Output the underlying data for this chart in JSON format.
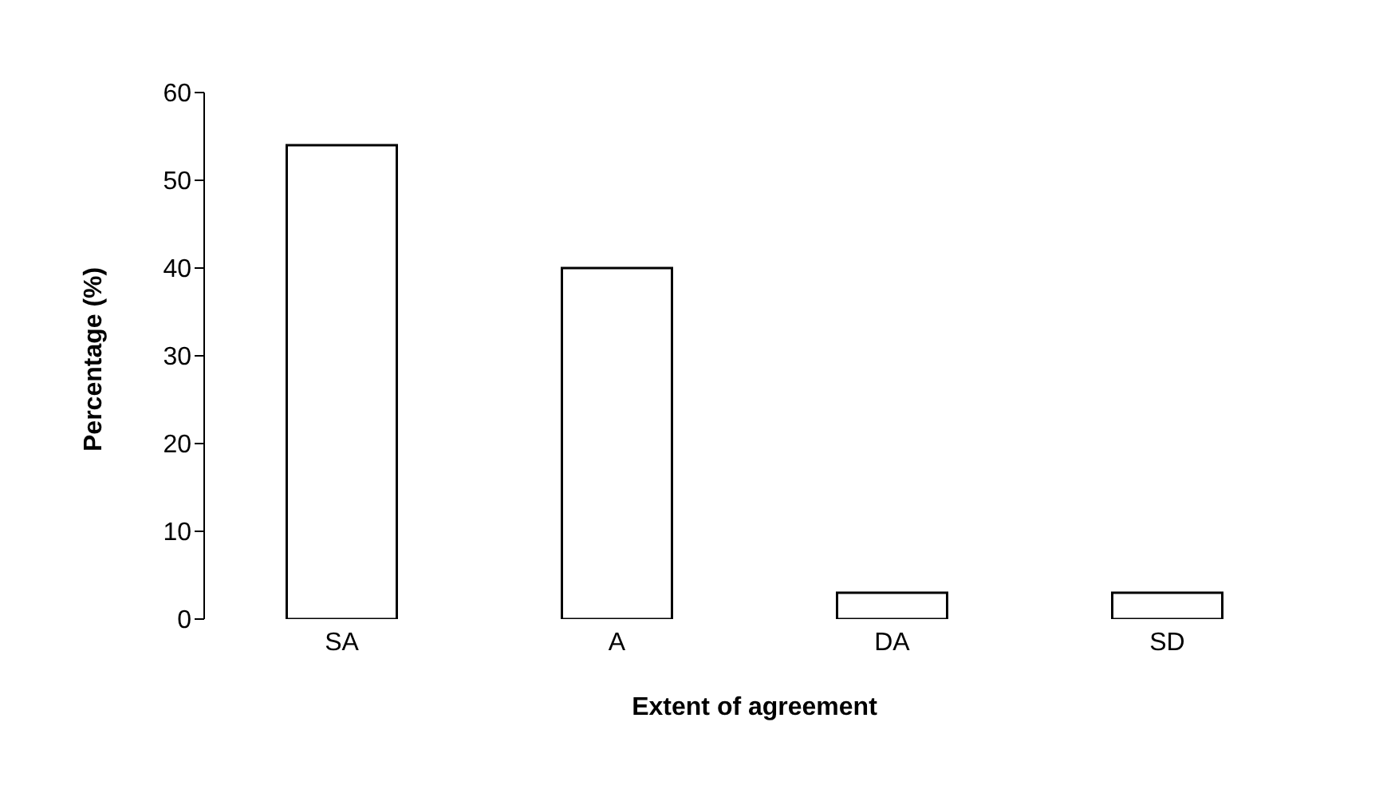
{
  "chart_data": {
    "type": "bar",
    "xlabel": "Extent of agreement",
    "ylabel": "Percentage (%)",
    "categories": [
      "SA",
      "A",
      "DA",
      "SD"
    ],
    "series": [
      {
        "color": "#ffffff",
        "values": [
          54,
          40,
          3,
          3
        ]
      }
    ],
    "ylim": [
      0,
      60
    ],
    "yticks": [
      0,
      10,
      20,
      30,
      40,
      50,
      60
    ],
    "grid": false,
    "legend": false
  }
}
